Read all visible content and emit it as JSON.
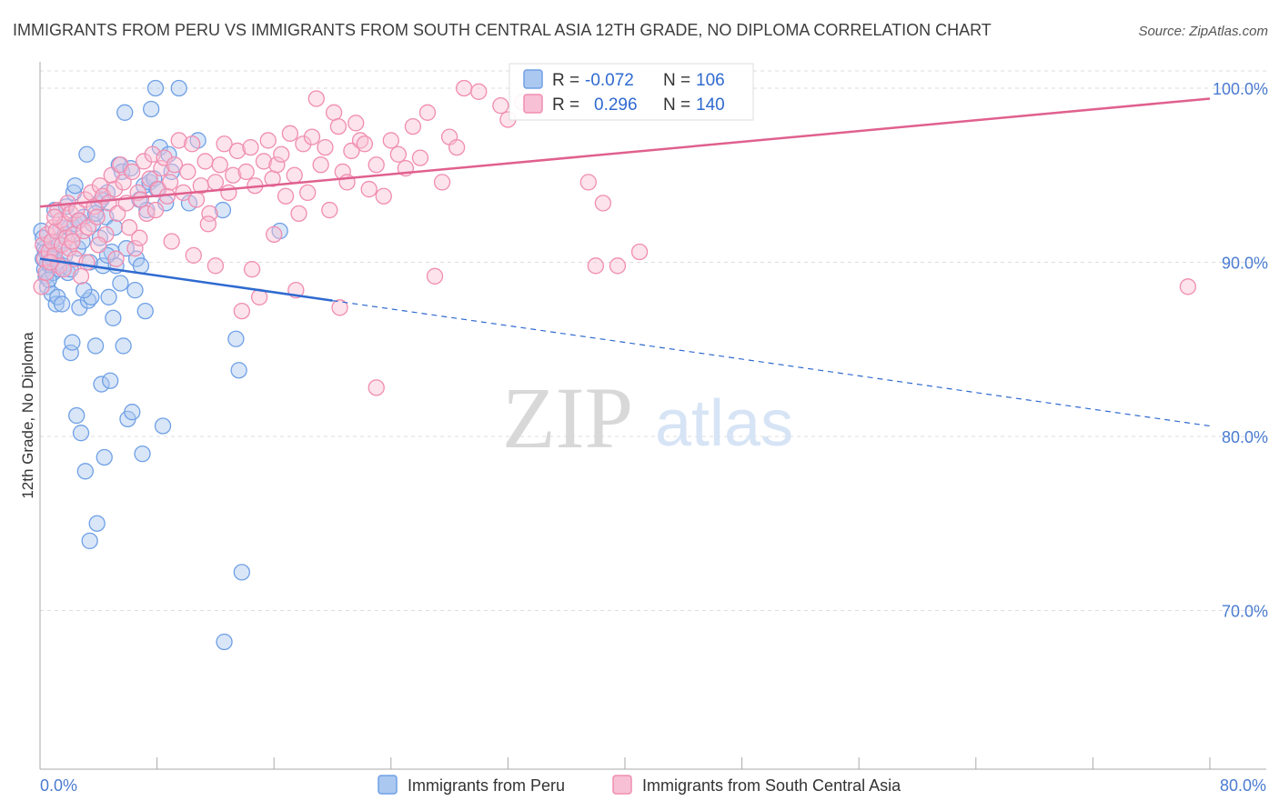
{
  "header": {
    "title": "IMMIGRANTS FROM PERU VS IMMIGRANTS FROM SOUTH CENTRAL ASIA 12TH GRADE, NO DIPLOMA CORRELATION CHART",
    "source": "Source: ZipAtlas.com"
  },
  "watermark": {
    "zip": "ZIP",
    "atlas": "atlas"
  },
  "legend_box": {
    "rows": [
      {
        "r_label": "R =",
        "r_value": "-0.072",
        "n_label": "N =",
        "n_value": "106"
      },
      {
        "r_label": "R =",
        "r_value": "0.296",
        "n_label": "N =",
        "n_value": "140"
      }
    ]
  },
  "colors": {
    "peru": "#6fa0e6",
    "peru_line": "#2f6ad0",
    "asia": "#f08db0",
    "asia_line": "#e0608e",
    "grid": "#dddddd",
    "axis_text": "#4a7bd0"
  },
  "chart_data": {
    "type": "scatter",
    "title": "IMMIGRANTS FROM PERU VS IMMIGRANTS FROM SOUTH CENTRAL ASIA 12TH GRADE, NO DIPLOMA CORRELATION CHART",
    "xlabel": "",
    "ylabel": "12th Grade, No Diploma",
    "xlim": [
      0,
      80
    ],
    "ylim": [
      60,
      101.5
    ],
    "x_tick_labels": [
      "0.0%",
      "80.0%"
    ],
    "y_ticks": [
      70,
      80,
      90,
      100
    ],
    "y_tick_labels": [
      "70.0%",
      "80.0%",
      "90.0%",
      "100.0%"
    ],
    "series": [
      {
        "name": "Immigrants from Peru",
        "r": -0.072,
        "n": 106,
        "trend": {
          "x": [
            0,
            20,
            80
          ],
          "y": [
            90.2,
            87.8,
            80.6
          ],
          "solid_until": 20
        },
        "points": [
          [
            0.1,
            91.8
          ],
          [
            0.2,
            90.2
          ],
          [
            0.3,
            89.6
          ],
          [
            0.3,
            90.8
          ],
          [
            0.4,
            89.2
          ],
          [
            0.5,
            90.0
          ],
          [
            0.5,
            88.6
          ],
          [
            0.6,
            90.4
          ],
          [
            0.7,
            89.8
          ],
          [
            0.8,
            91.2
          ],
          [
            0.8,
            88.2
          ],
          [
            0.9,
            89.4
          ],
          [
            1.0,
            93.0
          ],
          [
            1.0,
            90.6
          ],
          [
            1.1,
            87.6
          ],
          [
            1.2,
            90.0
          ],
          [
            1.2,
            88.0
          ],
          [
            1.3,
            89.6
          ],
          [
            1.4,
            92.0
          ],
          [
            1.5,
            87.6
          ],
          [
            1.6,
            89.8
          ],
          [
            1.7,
            91.6
          ],
          [
            1.8,
            93.2
          ],
          [
            1.9,
            89.4
          ],
          [
            2.0,
            92.0
          ],
          [
            2.1,
            84.8
          ],
          [
            2.2,
            85.4
          ],
          [
            2.3,
            94.0
          ],
          [
            2.4,
            92.2
          ],
          [
            2.4,
            94.4
          ],
          [
            2.5,
            81.2
          ],
          [
            2.6,
            90.8
          ],
          [
            2.7,
            87.4
          ],
          [
            2.8,
            80.2
          ],
          [
            2.9,
            91.2
          ],
          [
            3.0,
            92.6
          ],
          [
            3.1,
            78.0
          ],
          [
            3.2,
            96.2
          ],
          [
            3.3,
            87.8
          ],
          [
            3.4,
            74.0
          ],
          [
            3.5,
            88.0
          ],
          [
            3.6,
            92.2
          ],
          [
            3.8,
            85.2
          ],
          [
            3.9,
            75.0
          ],
          [
            4.0,
            93.4
          ],
          [
            4.1,
            91.4
          ],
          [
            4.2,
            83.0
          ],
          [
            4.3,
            89.8
          ],
          [
            4.4,
            78.8
          ],
          [
            4.5,
            92.6
          ],
          [
            4.6,
            94.0
          ],
          [
            4.7,
            88.0
          ],
          [
            4.8,
            83.2
          ],
          [
            4.9,
            90.6
          ],
          [
            5.0,
            86.8
          ],
          [
            5.2,
            89.8
          ],
          [
            5.4,
            95.6
          ],
          [
            5.5,
            88.8
          ],
          [
            5.6,
            95.2
          ],
          [
            5.7,
            85.2
          ],
          [
            5.8,
            98.6
          ],
          [
            6.0,
            81.0
          ],
          [
            6.2,
            95.4
          ],
          [
            6.3,
            81.4
          ],
          [
            6.5,
            88.4
          ],
          [
            6.6,
            90.2
          ],
          [
            6.8,
            93.6
          ],
          [
            6.9,
            89.8
          ],
          [
            7.0,
            79.0
          ],
          [
            7.1,
            94.4
          ],
          [
            7.2,
            87.2
          ],
          [
            7.3,
            93.0
          ],
          [
            7.5,
            94.6
          ],
          [
            7.6,
            98.8
          ],
          [
            7.8,
            94.8
          ],
          [
            7.9,
            100.0
          ],
          [
            8.0,
            94.2
          ],
          [
            8.2,
            96.6
          ],
          [
            8.4,
            80.6
          ],
          [
            8.6,
            93.4
          ],
          [
            8.8,
            96.2
          ],
          [
            9.0,
            95.2
          ],
          [
            9.5,
            100.0
          ],
          [
            10.2,
            93.4
          ],
          [
            10.8,
            97.0
          ],
          [
            12.5,
            93.0
          ],
          [
            12.6,
            68.2
          ],
          [
            13.4,
            85.6
          ],
          [
            13.6,
            83.8
          ],
          [
            13.8,
            72.2
          ],
          [
            16.4,
            91.8
          ],
          [
            0.2,
            91.4
          ],
          [
            0.4,
            90.6
          ],
          [
            0.6,
            89.0
          ],
          [
            0.9,
            90.2
          ],
          [
            1.3,
            91.0
          ],
          [
            1.7,
            90.4
          ],
          [
            2.1,
            89.6
          ],
          [
            2.6,
            92.4
          ],
          [
            3.0,
            88.4
          ],
          [
            3.4,
            90.0
          ],
          [
            3.8,
            92.8
          ],
          [
            4.2,
            93.6
          ],
          [
            4.6,
            90.4
          ],
          [
            5.1,
            92.0
          ],
          [
            5.9,
            90.8
          ]
        ]
      },
      {
        "name": "Immigrants from South Central Asia",
        "r": 0.296,
        "n": 140,
        "trend": {
          "x": [
            0,
            80
          ],
          "y": [
            93.2,
            99.4
          ]
        },
        "points": [
          [
            0.1,
            88.6
          ],
          [
            0.2,
            91.0
          ],
          [
            0.3,
            90.2
          ],
          [
            0.4,
            89.4
          ],
          [
            0.5,
            91.6
          ],
          [
            0.6,
            90.6
          ],
          [
            0.8,
            91.2
          ],
          [
            0.9,
            92.0
          ],
          [
            1.0,
            90.4
          ],
          [
            1.1,
            91.8
          ],
          [
            1.2,
            93.0
          ],
          [
            1.3,
            89.8
          ],
          [
            1.4,
            92.4
          ],
          [
            1.5,
            91.0
          ],
          [
            1.6,
            89.6
          ],
          [
            1.7,
            92.2
          ],
          [
            1.8,
            91.4
          ],
          [
            1.9,
            93.4
          ],
          [
            2.0,
            90.8
          ],
          [
            2.1,
            92.8
          ],
          [
            2.3,
            91.6
          ],
          [
            2.4,
            90.2
          ],
          [
            2.5,
            93.0
          ],
          [
            2.7,
            92.4
          ],
          [
            2.8,
            89.2
          ],
          [
            3.0,
            91.8
          ],
          [
            3.1,
            93.6
          ],
          [
            3.3,
            92.0
          ],
          [
            3.5,
            94.0
          ],
          [
            3.7,
            93.2
          ],
          [
            3.9,
            92.6
          ],
          [
            4.1,
            94.4
          ],
          [
            4.3,
            93.8
          ],
          [
            4.5,
            91.6
          ],
          [
            4.7,
            93.4
          ],
          [
            4.9,
            95.0
          ],
          [
            5.1,
            94.2
          ],
          [
            5.3,
            92.8
          ],
          [
            5.5,
            95.6
          ],
          [
            5.7,
            94.6
          ],
          [
            5.9,
            93.4
          ],
          [
            6.1,
            92.0
          ],
          [
            6.3,
            95.2
          ],
          [
            6.5,
            90.8
          ],
          [
            6.7,
            94.0
          ],
          [
            6.9,
            93.6
          ],
          [
            7.1,
            95.8
          ],
          [
            7.3,
            92.8
          ],
          [
            7.5,
            94.8
          ],
          [
            7.7,
            96.2
          ],
          [
            7.9,
            93.0
          ],
          [
            8.1,
            94.2
          ],
          [
            8.3,
            95.4
          ],
          [
            8.5,
            96.0
          ],
          [
            8.7,
            93.8
          ],
          [
            8.9,
            94.6
          ],
          [
            9.2,
            95.6
          ],
          [
            9.5,
            97.0
          ],
          [
            9.8,
            94.0
          ],
          [
            10.1,
            95.2
          ],
          [
            10.4,
            96.8
          ],
          [
            10.7,
            93.6
          ],
          [
            11.0,
            94.4
          ],
          [
            11.3,
            95.8
          ],
          [
            11.6,
            92.8
          ],
          [
            12.0,
            94.6
          ],
          [
            12.3,
            95.6
          ],
          [
            12.6,
            96.8
          ],
          [
            12.9,
            94.0
          ],
          [
            13.2,
            95.0
          ],
          [
            13.5,
            96.4
          ],
          [
            13.8,
            87.2
          ],
          [
            14.1,
            95.2
          ],
          [
            14.4,
            96.6
          ],
          [
            14.7,
            94.4
          ],
          [
            15.0,
            88.0
          ],
          [
            15.3,
            95.8
          ],
          [
            15.6,
            97.0
          ],
          [
            15.9,
            94.8
          ],
          [
            16.2,
            95.6
          ],
          [
            16.5,
            96.2
          ],
          [
            16.8,
            93.8
          ],
          [
            17.1,
            97.4
          ],
          [
            17.4,
            95.0
          ],
          [
            17.7,
            92.8
          ],
          [
            18.0,
            96.8
          ],
          [
            18.3,
            94.0
          ],
          [
            18.6,
            97.2
          ],
          [
            18.9,
            99.4
          ],
          [
            19.2,
            95.6
          ],
          [
            19.5,
            96.6
          ],
          [
            19.8,
            93.0
          ],
          [
            20.1,
            98.6
          ],
          [
            20.4,
            97.8
          ],
          [
            20.7,
            95.2
          ],
          [
            21.0,
            94.6
          ],
          [
            21.3,
            96.4
          ],
          [
            21.6,
            98.0
          ],
          [
            21.9,
            97.0
          ],
          [
            22.2,
            96.8
          ],
          [
            22.5,
            94.2
          ],
          [
            23.0,
            95.6
          ],
          [
            23.5,
            93.8
          ],
          [
            24.0,
            97.0
          ],
          [
            24.5,
            96.2
          ],
          [
            25.0,
            95.4
          ],
          [
            25.5,
            97.8
          ],
          [
            26.0,
            96.0
          ],
          [
            26.5,
            98.6
          ],
          [
            27.0,
            89.2
          ],
          [
            27.5,
            94.6
          ],
          [
            28.0,
            97.2
          ],
          [
            28.5,
            96.6
          ],
          [
            29.0,
            100.0
          ],
          [
            30.0,
            99.8
          ],
          [
            31.5,
            99.0
          ],
          [
            32.0,
            98.2
          ],
          [
            33.0,
            99.2
          ],
          [
            37.5,
            94.6
          ],
          [
            38.0,
            89.8
          ],
          [
            38.5,
            93.4
          ],
          [
            39.5,
            89.8
          ],
          [
            41.0,
            90.6
          ],
          [
            78.5,
            88.6
          ],
          [
            17.5,
            88.4
          ],
          [
            20.5,
            87.4
          ],
          [
            23.0,
            82.8
          ],
          [
            12.0,
            89.8
          ],
          [
            14.5,
            89.6
          ],
          [
            16.0,
            91.6
          ],
          [
            10.5,
            90.4
          ],
          [
            9.0,
            91.2
          ],
          [
            11.5,
            92.2
          ],
          [
            6.8,
            91.4
          ],
          [
            5.2,
            90.2
          ],
          [
            4.0,
            91.0
          ],
          [
            3.2,
            90.0
          ],
          [
            2.2,
            91.2
          ],
          [
            1.0,
            92.6
          ],
          [
            0.7,
            90.0
          ]
        ]
      }
    ]
  },
  "bottom_legend": {
    "items": [
      {
        "label": "Immigrants from Peru"
      },
      {
        "label": "Immigrants from South Central Asia"
      }
    ]
  }
}
